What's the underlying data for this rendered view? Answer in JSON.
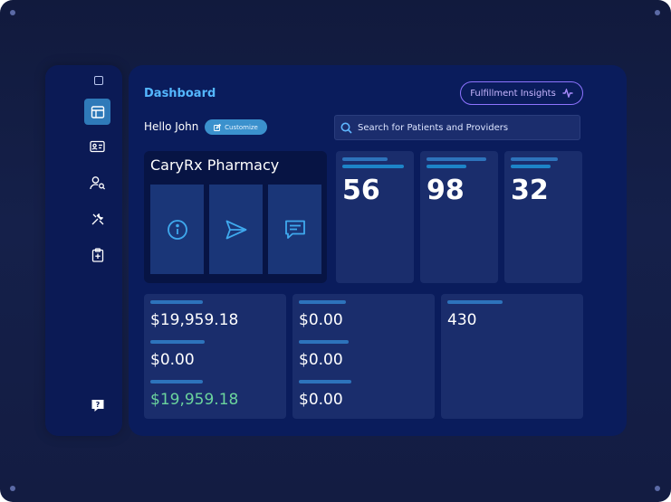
{
  "header": {
    "title": "Dashboard",
    "insights_button": "Fulfillment Insights"
  },
  "greeting": "Hello John",
  "customize_label": "Customize",
  "search": {
    "placeholder": "Search for Patients and Providers"
  },
  "pharmacy": {
    "name": "CaryRx Pharmacy",
    "buttons": [
      "info-icon",
      "send-icon",
      "message-icon"
    ]
  },
  "stats": [
    "56",
    "98",
    "32"
  ],
  "money": {
    "col1": [
      "$19,959.18",
      "$0.00",
      "$19,959.18"
    ],
    "col2": [
      "$0.00",
      "$0.00",
      "$0.00"
    ],
    "col3": [
      "430"
    ]
  },
  "sidebar": {
    "items": [
      "dashboard-icon",
      "id-card-icon",
      "user-search-icon",
      "tools-icon",
      "clipboard-plus-icon",
      "help-icon"
    ]
  },
  "colors": {
    "accent": "#54b7ff",
    "insights": "#8d73ff",
    "positive": "#6bd49d",
    "active": "#2f7ab9"
  }
}
